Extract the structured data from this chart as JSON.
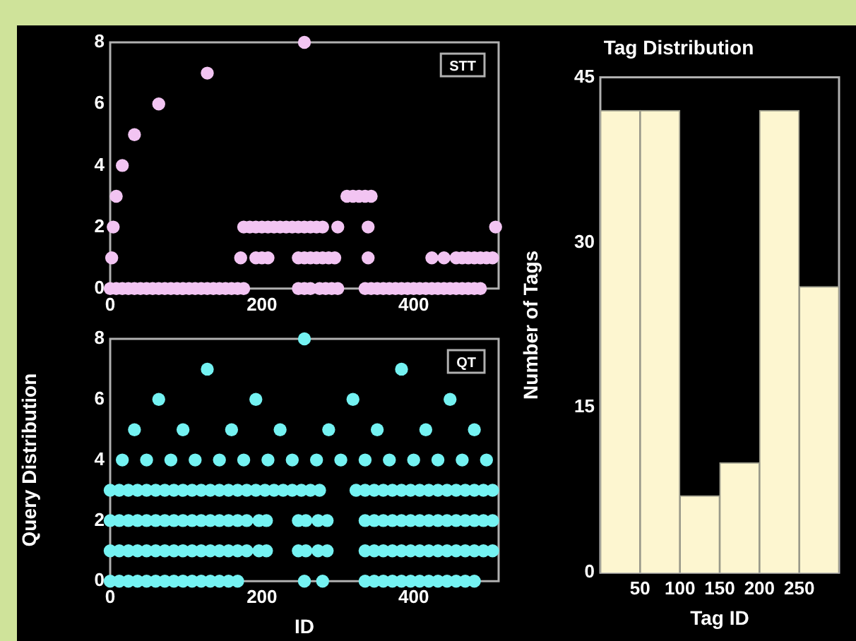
{
  "chart_data": [
    {
      "type": "scatter",
      "xlim": [
        0,
        512
      ],
      "ylim": [
        0,
        8
      ],
      "xticks": [
        0,
        200,
        400
      ],
      "yticks": [
        0,
        2,
        4,
        6,
        8
      ],
      "marker": "circle",
      "annotations": [
        "STT"
      ],
      "series": [
        {
          "color": "#f2c4f2",
          "x": [
            256,
            128,
            64,
            32,
            16,
            8,
            312,
            320,
            328,
            336,
            344,
            4,
            176,
            184,
            192,
            200,
            208,
            216,
            224,
            232,
            240,
            248,
            256,
            264,
            272,
            280,
            300,
            340,
            508,
            2,
            172,
            192,
            200,
            208,
            248,
            256,
            264,
            272,
            280,
            288,
            296,
            340,
            424,
            440,
            456,
            464,
            472,
            480,
            488,
            496,
            504,
            0,
            8,
            16,
            24,
            32,
            40,
            48,
            56,
            64,
            72,
            80,
            88,
            96,
            104,
            112,
            120,
            128,
            136,
            144,
            152,
            160,
            168,
            176,
            248,
            256,
            264,
            276,
            284,
            292,
            300,
            336,
            344,
            352,
            360,
            368,
            376,
            384,
            392,
            400,
            408,
            416,
            424,
            432,
            440,
            448,
            456,
            464,
            472,
            480,
            488
          ],
          "values": [
            8,
            7,
            6,
            5,
            4,
            3,
            3,
            3,
            3,
            3,
            3,
            2,
            2,
            2,
            2,
            2,
            2,
            2,
            2,
            2,
            2,
            2,
            2,
            2,
            2,
            2,
            2,
            2,
            2,
            1,
            1,
            1,
            1,
            1,
            1,
            1,
            1,
            1,
            1,
            1,
            1,
            1,
            1,
            1,
            1,
            1,
            1,
            1,
            1,
            1,
            1,
            0,
            0,
            0,
            0,
            0,
            0,
            0,
            0,
            0,
            0,
            0,
            0,
            0,
            0,
            0,
            0,
            0,
            0,
            0,
            0,
            0,
            0,
            0,
            0,
            0,
            0,
            0,
            0,
            0,
            0,
            0,
            0,
            0,
            0,
            0,
            0,
            0,
            0,
            0,
            0,
            0,
            0,
            0,
            0,
            0,
            0,
            0,
            0,
            0,
            0
          ]
        }
      ]
    },
    {
      "type": "scatter",
      "xlim": [
        0,
        512
      ],
      "ylim": [
        0,
        8
      ],
      "xticks": [
        0,
        200,
        400
      ],
      "yticks": [
        0,
        2,
        4,
        6,
        8
      ],
      "marker": "circle",
      "xlabel": "ID",
      "ylabel": "Query Distribution",
      "annotations": [
        "QT"
      ],
      "series": [
        {
          "color": "#74f2f2",
          "x": [
            256,
            128,
            384,
            64,
            192,
            320,
            448,
            32,
            96,
            160,
            224,
            288,
            352,
            416,
            480,
            16,
            48,
            80,
            112,
            144,
            176,
            208,
            240,
            272,
            304,
            336,
            368,
            400,
            432,
            464,
            496,
            0,
            12,
            24,
            36,
            48,
            60,
            72,
            84,
            96,
            108,
            120,
            132,
            144,
            156,
            168,
            180,
            192,
            204,
            216,
            228,
            240,
            252,
            264,
            276,
            324,
            336,
            348,
            360,
            372,
            384,
            396,
            408,
            420,
            432,
            444,
            456,
            468,
            480,
            492,
            504,
            0,
            12,
            24,
            36,
            48,
            60,
            72,
            84,
            96,
            108,
            120,
            132,
            144,
            156,
            168,
            180,
            196,
            206,
            248,
            258,
            274,
            286,
            336,
            348,
            360,
            372,
            384,
            396,
            408,
            420,
            432,
            444,
            456,
            468,
            480,
            492,
            504,
            0,
            12,
            24,
            36,
            48,
            60,
            72,
            84,
            96,
            108,
            120,
            132,
            144,
            156,
            168,
            180,
            196,
            206,
            248,
            258,
            274,
            286,
            336,
            348,
            360,
            372,
            384,
            396,
            408,
            420,
            432,
            444,
            456,
            468,
            480,
            492,
            504,
            0,
            12,
            24,
            36,
            48,
            60,
            72,
            84,
            96,
            108,
            120,
            132,
            144,
            156,
            168,
            256,
            280,
            336,
            348,
            360,
            372,
            384,
            396,
            408,
            420,
            432,
            444,
            456,
            468,
            480
          ],
          "values": [
            8,
            7,
            7,
            6,
            6,
            6,
            6,
            5,
            5,
            5,
            5,
            5,
            5,
            5,
            5,
            4,
            4,
            4,
            4,
            4,
            4,
            4,
            4,
            4,
            4,
            4,
            4,
            4,
            4,
            4,
            4,
            3,
            3,
            3,
            3,
            3,
            3,
            3,
            3,
            3,
            3,
            3,
            3,
            3,
            3,
            3,
            3,
            3,
            3,
            3,
            3,
            3,
            3,
            3,
            3,
            3,
            3,
            3,
            3,
            3,
            3,
            3,
            3,
            3,
            3,
            3,
            3,
            3,
            3,
            3,
            3,
            2,
            2,
            2,
            2,
            2,
            2,
            2,
            2,
            2,
            2,
            2,
            2,
            2,
            2,
            2,
            2,
            2,
            2,
            2,
            2,
            2,
            2,
            2,
            2,
            2,
            2,
            2,
            2,
            2,
            2,
            2,
            2,
            2,
            2,
            2,
            2,
            2,
            1,
            1,
            1,
            1,
            1,
            1,
            1,
            1,
            1,
            1,
            1,
            1,
            1,
            1,
            1,
            1,
            1,
            1,
            1,
            1,
            1,
            1,
            1,
            1,
            1,
            1,
            1,
            1,
            1,
            1,
            1,
            1,
            1,
            1,
            1,
            1,
            1,
            0,
            0,
            0,
            0,
            0,
            0,
            0,
            0,
            0,
            0,
            0,
            0,
            0,
            0,
            0,
            0,
            0,
            0,
            0,
            0,
            0,
            0,
            0,
            0,
            0,
            0,
            0,
            0,
            0,
            0
          ]
        }
      ]
    },
    {
      "type": "histogram",
      "title": "Tag Distribution",
      "xlabel": "Tag ID",
      "ylabel": "Number of Tags",
      "bins": [
        0,
        50,
        100,
        150,
        200,
        250,
        300
      ],
      "values": [
        42,
        42,
        7,
        10,
        42,
        26
      ],
      "color": "#fdf6d0",
      "xlim": [
        0,
        300
      ],
      "ylim": [
        0,
        45
      ],
      "xticks": [
        50,
        100,
        150,
        200,
        250
      ],
      "yticks": [
        0,
        15,
        30,
        45
      ]
    }
  ]
}
